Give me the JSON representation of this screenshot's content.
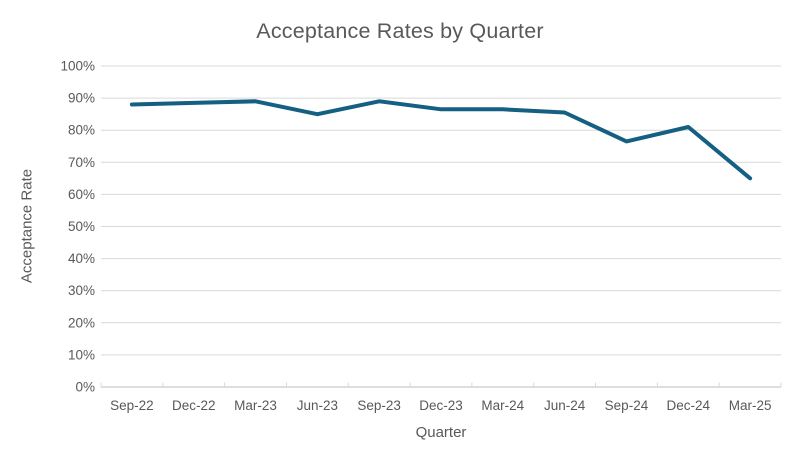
{
  "chart_data": {
    "type": "line",
    "title": "Acceptance Rates by Quarter",
    "xlabel": "Quarter",
    "ylabel": "Acceptance Rate",
    "categories": [
      "Sep-22",
      "Dec-22",
      "Mar-23",
      "Jun-23",
      "Sep-23",
      "Dec-23",
      "Mar-24",
      "Jun-24",
      "Sep-24",
      "Dec-24",
      "Mar-25"
    ],
    "series": [
      {
        "name": "Acceptance Rate",
        "values": [
          88,
          88.5,
          89,
          85,
          89,
          86.5,
          86.5,
          85.5,
          76.5,
          81,
          65
        ]
      }
    ],
    "ylim": [
      0,
      100
    ],
    "ytick_step": 10,
    "ytick_labels": [
      "0%",
      "10%",
      "20%",
      "30%",
      "40%",
      "50%",
      "60%",
      "70%",
      "80%",
      "90%",
      "100%"
    ],
    "grid": true,
    "legend": false,
    "colors": {
      "line": "#156082",
      "gridline": "#D9D9D9",
      "axis": "#D9D9D9",
      "text": "#595959"
    }
  }
}
